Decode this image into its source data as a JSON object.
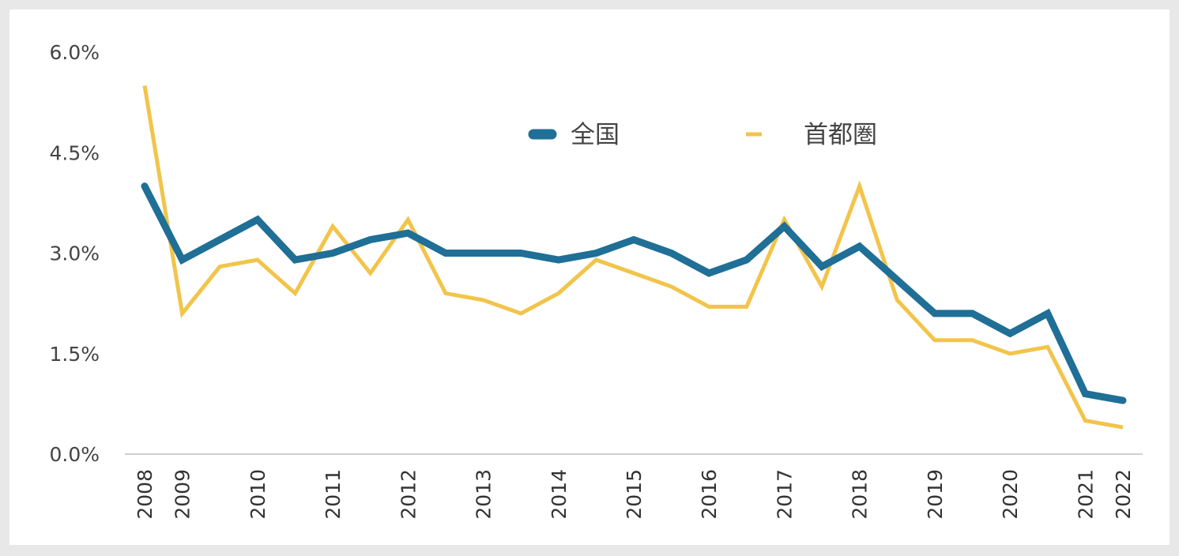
{
  "chart_data": {
    "type": "line",
    "title": "",
    "xlabel": "",
    "ylabel": "",
    "ylim": [
      0,
      6
    ],
    "y_ticks": [
      "0.0%",
      "1.5%",
      "3.0%",
      "4.5%",
      "6.0%"
    ],
    "y_tick_values": [
      0,
      1.5,
      3.0,
      4.5,
      6.0
    ],
    "x_tick_labels": [
      {
        "label": "2008",
        "index": 0
      },
      {
        "label": "2009",
        "index": 1
      },
      {
        "label": "2010",
        "index": 3
      },
      {
        "label": "2011",
        "index": 5
      },
      {
        "label": "2012",
        "index": 7
      },
      {
        "label": "2013",
        "index": 9
      },
      {
        "label": "2014",
        "index": 11
      },
      {
        "label": "2015",
        "index": 13
      },
      {
        "label": "2016",
        "index": 15
      },
      {
        "label": "2017",
        "index": 17
      },
      {
        "label": "2018",
        "index": 19
      },
      {
        "label": "2019",
        "index": 21
      },
      {
        "label": "2020",
        "index": 23
      },
      {
        "label": "2021",
        "index": 25
      },
      {
        "label": "2022",
        "index": 26
      }
    ],
    "point_count": 27,
    "series": [
      {
        "name": "全国",
        "color": "#1f6f96",
        "values": [
          4.0,
          2.9,
          3.2,
          3.5,
          2.9,
          3.0,
          3.2,
          3.3,
          3.0,
          3.0,
          3.0,
          2.9,
          3.0,
          3.2,
          3.0,
          2.7,
          2.9,
          3.4,
          2.8,
          3.1,
          2.6,
          2.1,
          2.1,
          1.8,
          2.1,
          0.9,
          0.8
        ]
      },
      {
        "name": "首都圏",
        "color": "#f2c44a",
        "values": [
          5.5,
          2.1,
          2.8,
          2.9,
          2.4,
          3.4,
          2.7,
          3.5,
          2.4,
          2.3,
          2.1,
          2.4,
          2.9,
          2.7,
          2.5,
          2.2,
          2.2,
          3.5,
          2.5,
          4.0,
          2.3,
          1.7,
          1.7,
          1.5,
          1.6,
          0.5,
          0.4
        ]
      }
    ],
    "legend_position": "top-center"
  }
}
